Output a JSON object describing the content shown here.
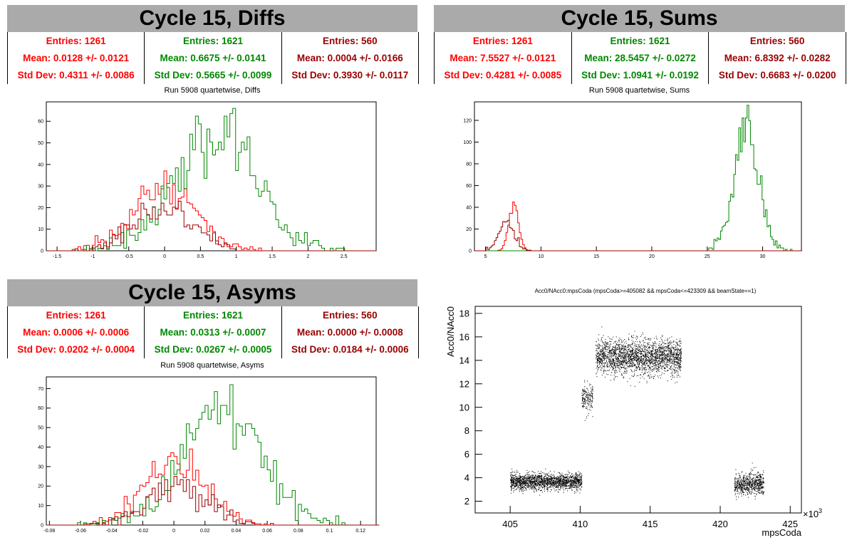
{
  "colors": {
    "red": "#ff0000",
    "green": "#008800",
    "darkred": "#990000",
    "title_bg": "#aaaaaa"
  },
  "panels": [
    {
      "title": "Cycle 15, Diffs",
      "subtitle": "Run 5908 quartetwise, Diffs",
      "stats": [
        {
          "entries": "Entries: 1261",
          "mean": "Mean: 0.0128 +/- 0.0121",
          "std": "Std Dev: 0.4311 +/- 0.0086"
        },
        {
          "entries": "Entries: 1621",
          "mean": "Mean: 0.6675 +/- 0.0141",
          "std": "Std Dev: 0.5665 +/- 0.0099"
        },
        {
          "entries": "Entries: 560",
          "mean": "Mean: 0.0004 +/- 0.0166",
          "std": "Std Dev: 0.3930 +/- 0.0117"
        }
      ]
    },
    {
      "title": "Cycle 15, Sums",
      "subtitle": "Run 5908 quartetwise, Sums",
      "stats": [
        {
          "entries": "Entries: 1261",
          "mean": "Mean: 7.5527 +/- 0.0121",
          "std": "Std Dev: 0.4281 +/- 0.0085"
        },
        {
          "entries": "Entries: 1621",
          "mean": "Mean: 28.5457 +/- 0.0272",
          "std": "Std Dev: 1.0941 +/- 0.0192"
        },
        {
          "entries": "Entries: 560",
          "mean": "Mean: 6.8392 +/- 0.0282",
          "std": "Std Dev: 0.6683 +/- 0.0200"
        }
      ]
    },
    {
      "title": "Cycle 15, Asyms",
      "subtitle": "Run 5908 quartetwise, Asyms",
      "stats": [
        {
          "entries": "Entries: 1261",
          "mean": "Mean: 0.0006 +/- 0.0006",
          "std": "Std Dev: 0.0202 +/- 0.0004"
        },
        {
          "entries": "Entries: 1621",
          "mean": "Mean: 0.0313 +/- 0.0007",
          "std": "Std Dev: 0.0267 +/- 0.0005"
        },
        {
          "entries": "Entries: 560",
          "mean": "Mean: 0.0000 +/- 0.0008",
          "std": "Std Dev: 0.0184 +/- 0.0006"
        }
      ]
    }
  ],
  "chart_data": [
    {
      "type": "histogram",
      "title": "Run 5908 quartetwise, Diffs",
      "xlim": [
        -1.65,
        2.95
      ],
      "ylim": [
        0,
        69
      ],
      "xticks": [
        -1.5,
        -1,
        -0.5,
        0,
        0.5,
        1,
        1.5,
        2,
        2.5
      ],
      "xtick_labels": [
        "-1.5",
        "-1",
        "-0.5",
        "0",
        "0.5",
        "1",
        "1.5",
        "2",
        "2.5"
      ],
      "yticks": [
        0,
        10,
        20,
        30,
        40,
        50,
        60
      ],
      "series": [
        {
          "color": "#ff0000",
          "entries": 1261,
          "mean": 0.0128,
          "std": 0.4311,
          "peak": 37,
          "width": 0.04,
          "seed": 11
        },
        {
          "color": "#008800",
          "entries": 1621,
          "mean": 0.6675,
          "std": 0.5665,
          "peak": 66,
          "width": 0.04,
          "seed": 23
        },
        {
          "color": "#990000",
          "entries": 560,
          "mean": 0.0004,
          "std": 0.393,
          "peak": 23,
          "width": 0.04,
          "seed": 37
        }
      ]
    },
    {
      "type": "histogram",
      "title": "Run 5908 quartetwise, Sums",
      "xlim": [
        4,
        33.5
      ],
      "ylim": [
        0,
        137
      ],
      "xticks": [
        5,
        10,
        15,
        20,
        25,
        30
      ],
      "xtick_labels": [
        "5",
        "10",
        "15",
        "20",
        "25",
        "30"
      ],
      "yticks": [
        0,
        20,
        40,
        60,
        80,
        100,
        120
      ],
      "series": [
        {
          "color": "#ff0000",
          "entries": 1261,
          "mean": 7.5527,
          "std": 0.4281,
          "peak": 45,
          "width": 0.15,
          "seed": 5
        },
        {
          "color": "#008800",
          "entries": 1621,
          "mean": 28.5457,
          "std": 1.0941,
          "peak": 134,
          "width": 0.15,
          "seed": 17
        },
        {
          "color": "#990000",
          "entries": 560,
          "mean": 6.8392,
          "std": 0.6683,
          "peak": 28,
          "width": 0.15,
          "seed": 29
        }
      ]
    },
    {
      "type": "histogram",
      "title": "Run 5908 quartetwise, Asyms",
      "xlim": [
        -0.082,
        0.13
      ],
      "ylim": [
        0,
        76
      ],
      "xticks": [
        -0.08,
        -0.06,
        -0.04,
        -0.02,
        0,
        0.02,
        0.04,
        0.06,
        0.08,
        0.1,
        0.12
      ],
      "xtick_labels": [
        "-0.08",
        "-0.06",
        "-0.04",
        "-0.02",
        "0",
        "0.02",
        "0.04",
        "0.06",
        "0.08",
        "0.1",
        "0.12"
      ],
      "yticks": [
        0,
        10,
        20,
        30,
        40,
        50,
        60,
        70
      ],
      "series": [
        {
          "color": "#ff0000",
          "entries": 1261,
          "mean": 0.0006,
          "std": 0.0202,
          "peak": 39,
          "width": 0.002,
          "seed": 41
        },
        {
          "color": "#008800",
          "entries": 1621,
          "mean": 0.0313,
          "std": 0.0267,
          "peak": 72,
          "width": 0.002,
          "seed": 53
        },
        {
          "color": "#990000",
          "entries": 560,
          "mean": 0.0,
          "std": 0.0184,
          "peak": 25,
          "width": 0.002,
          "seed": 67
        }
      ]
    },
    {
      "type": "scatter",
      "title": "Acc0/NAcc0:mpsCoda (mpsCoda>=405082 && mpsCoda<=423309 && beamState==1)",
      "xlabel": "mpsCoda",
      "ylabel": "Acc0/NAcc0",
      "x_multiplier": "×10",
      "x_multiplier_exp": "3",
      "xlim": [
        402.5,
        425.8
      ],
      "ylim": [
        1,
        18.6
      ],
      "xticks": [
        405,
        410,
        415,
        420,
        425
      ],
      "xtick_labels": [
        "405",
        "410",
        "415",
        "420",
        "425"
      ],
      "yticks": [
        2,
        4,
        6,
        8,
        10,
        12,
        14,
        16,
        18
      ],
      "ytick_labels": [
        "2",
        "4",
        "6",
        "8",
        "10",
        "12",
        "14",
        "16",
        "18"
      ],
      "clusters": [
        {
          "x": [
            405.0,
            410.1
          ],
          "y_mean": 3.7,
          "y_std": 0.35,
          "count": 1800
        },
        {
          "x": [
            410.1,
            410.9
          ],
          "y_mean": 10.8,
          "y_std": 0.6,
          "count": 180
        },
        {
          "x": [
            411.1,
            417.2
          ],
          "y_mean": 14.3,
          "y_std": 0.75,
          "count": 2400
        },
        {
          "x": [
            421.0,
            423.1
          ],
          "y_mean": 3.5,
          "y_std": 0.45,
          "count": 700
        }
      ]
    }
  ]
}
